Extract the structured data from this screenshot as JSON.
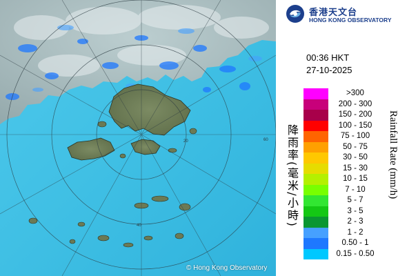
{
  "header": {
    "org_chinese": "香港天文台",
    "org_english": "HONG KONG OBSERVATORY"
  },
  "timestamp": {
    "time": "00:36 HKT",
    "date": "27-10-2025"
  },
  "legend": {
    "title_english": "Rainfall Rate (mm/h)",
    "title_chinese": "降雨率(毫米/小時)",
    "items": [
      {
        "label": ">300",
        "color": "#ff00ff"
      },
      {
        "label": "200 - 300",
        "color": "#c8007a"
      },
      {
        "label": "150 - 200",
        "color": "#a8004a"
      },
      {
        "label": "100 - 150",
        "color": "#ff0000"
      },
      {
        "label": "75 - 100",
        "color": "#ff6400"
      },
      {
        "label": "50 - 75",
        "color": "#ffa000"
      },
      {
        "label": "30 - 50",
        "color": "#ffc800"
      },
      {
        "label": "15 - 30",
        "color": "#e6dc00"
      },
      {
        "label": "10 - 15",
        "color": "#b4f000"
      },
      {
        "label": "7 - 10",
        "color": "#78ff00"
      },
      {
        "label": "5 - 7",
        "color": "#32e632"
      },
      {
        "label": "3 - 5",
        "color": "#14c814"
      },
      {
        "label": "2 - 3",
        "color": "#0a9632"
      },
      {
        "label": "1 - 2",
        "color": "#46a0ff"
      },
      {
        "label": "0.50 - 1",
        "color": "#1e78ff"
      },
      {
        "label": "0.15 - 0.50",
        "color": "#00c8ff"
      }
    ]
  },
  "map": {
    "range_rings_km": [
      "20",
      "40",
      "60"
    ],
    "copyright": "© Hong Kong Observatory"
  }
}
